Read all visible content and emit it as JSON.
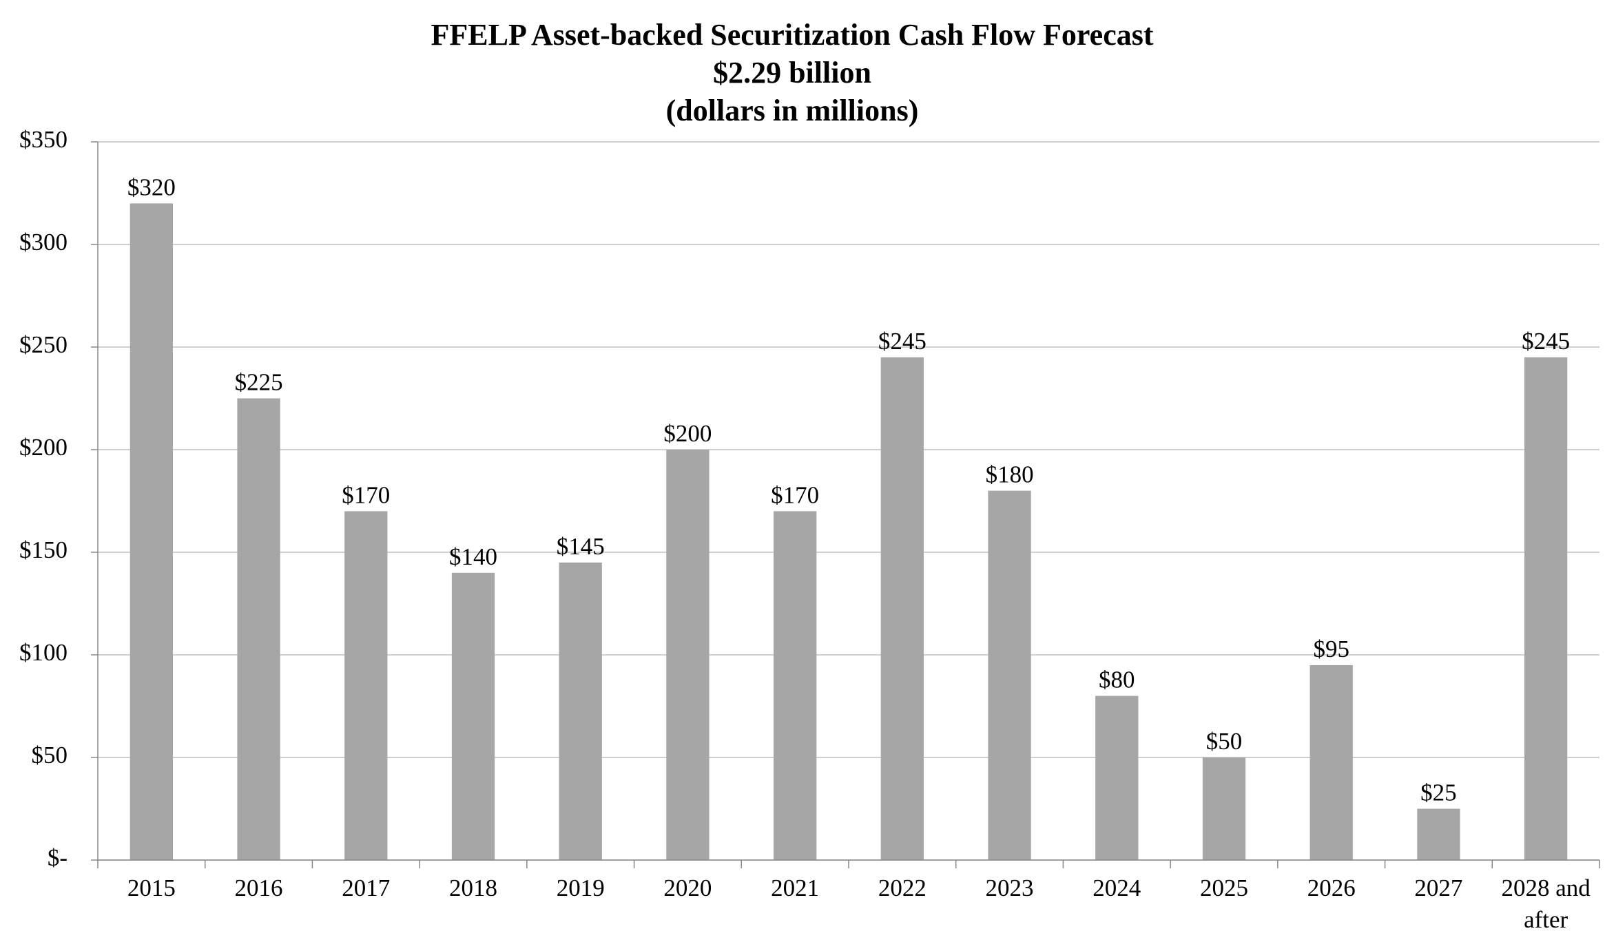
{
  "chart_data": {
    "type": "bar",
    "title": "FFELP Asset-backed Securitization Cash Flow Forecast",
    "subtitle": [
      "$2.29 billion",
      "(dollars in millions)"
    ],
    "categories": [
      "2015",
      "2016",
      "2017",
      "2018",
      "2019",
      "2020",
      "2021",
      "2022",
      "2023",
      "2024",
      "2025",
      "2026",
      "2027",
      "2028 and after"
    ],
    "values": [
      320,
      225,
      170,
      140,
      145,
      200,
      170,
      245,
      180,
      80,
      50,
      95,
      25,
      245
    ],
    "value_labels": [
      "$320",
      "$225",
      "$170",
      "$140",
      "$145",
      "$200",
      "$170",
      "$245",
      "$180",
      "$80",
      "$50",
      "$95",
      "$25",
      "$245"
    ],
    "color": "#a6a6a6",
    "ylim": [
      0,
      350
    ],
    "yticks": [
      {
        "value": 0,
        "label": "$-"
      },
      {
        "value": 50,
        "label": "$50"
      },
      {
        "value": 100,
        "label": "$100"
      },
      {
        "value": 150,
        "label": "$150"
      },
      {
        "value": 200,
        "label": "$200"
      },
      {
        "value": 250,
        "label": "$250"
      },
      {
        "value": 300,
        "label": "$300"
      },
      {
        "value": 350,
        "label": "$350"
      }
    ],
    "grid": true
  }
}
